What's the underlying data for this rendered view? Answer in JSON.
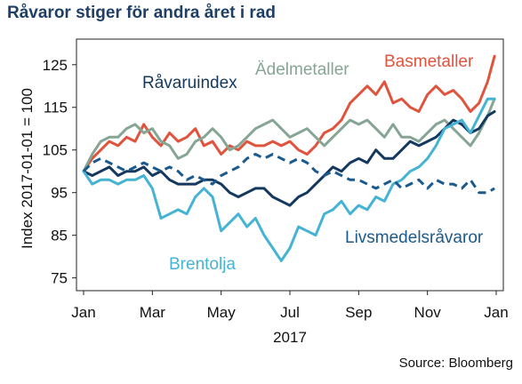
{
  "chart_data": {
    "type": "line",
    "title": "Råvaror stiger för andra året i rad",
    "xlabel": "2017",
    "ylabel": "Index 2017-01-01 = 100",
    "source": "Source: Bloomberg",
    "ylim": [
      72,
      131
    ],
    "yticks": [
      75,
      85,
      95,
      105,
      115,
      125
    ],
    "xlim": [
      0,
      12
    ],
    "xticks": [
      {
        "x": 0,
        "label": "Jan"
      },
      {
        "x": 2,
        "label": "Mar"
      },
      {
        "x": 4,
        "label": "May"
      },
      {
        "x": 6,
        "label": "Jul"
      },
      {
        "x": 8,
        "label": "Sep"
      },
      {
        "x": 10,
        "label": "Nov"
      },
      {
        "x": 12,
        "label": "Jan"
      }
    ],
    "grid": false,
    "legend": "inline labels",
    "series": [
      {
        "name": "Basmetaller",
        "color": "#e0533d",
        "dashed": false,
        "x": [
          0,
          0.25,
          0.5,
          0.75,
          1,
          1.25,
          1.5,
          1.75,
          2,
          2.25,
          2.5,
          2.75,
          3,
          3.25,
          3.5,
          3.75,
          4,
          4.25,
          4.5,
          4.75,
          5,
          5.25,
          5.5,
          5.75,
          6,
          6.25,
          6.5,
          6.75,
          7,
          7.25,
          7.5,
          7.75,
          8,
          8.25,
          8.5,
          8.75,
          9,
          9.25,
          9.5,
          9.75,
          10,
          10.25,
          10.5,
          10.75,
          11,
          11.25,
          11.5,
          11.75,
          11.95
        ],
        "y": [
          100,
          103,
          105,
          107,
          106,
          108,
          107,
          111,
          108,
          106,
          109,
          107,
          108,
          110,
          106,
          107,
          104,
          106,
          105,
          107,
          106,
          106,
          107,
          106,
          107,
          105,
          104,
          106,
          109,
          110,
          112,
          116,
          118,
          120,
          118,
          121,
          116,
          117,
          115,
          114,
          118,
          120,
          118,
          119,
          117,
          114,
          116,
          121,
          127
        ]
      },
      {
        "name": "Ädelmetaller",
        "color": "#86a595",
        "dashed": false,
        "x": [
          0,
          0.25,
          0.5,
          0.75,
          1,
          1.25,
          1.5,
          1.75,
          2,
          2.25,
          2.5,
          2.75,
          3,
          3.25,
          3.5,
          3.75,
          4,
          4.25,
          4.5,
          4.75,
          5,
          5.25,
          5.5,
          5.75,
          6,
          6.25,
          6.5,
          6.75,
          7,
          7.25,
          7.5,
          7.75,
          8,
          8.25,
          8.5,
          8.75,
          9,
          9.25,
          9.5,
          9.75,
          10,
          10.25,
          10.5,
          10.75,
          11,
          11.25,
          11.5,
          11.75,
          11.95
        ],
        "y": [
          100,
          104,
          107,
          108,
          108,
          110,
          111,
          109,
          110,
          107,
          106,
          103,
          104,
          107,
          108,
          110,
          108,
          105,
          106,
          108,
          110,
          111,
          112,
          110,
          108,
          109,
          110,
          108,
          106,
          108,
          110,
          112,
          111,
          112,
          110,
          108,
          111,
          108,
          108,
          107,
          109,
          111,
          112,
          110,
          108,
          106,
          109,
          113,
          117
        ]
      },
      {
        "name": "Råvaruindex",
        "color": "#15385f",
        "dashed": false,
        "x": [
          0,
          0.25,
          0.5,
          0.75,
          1,
          1.25,
          1.5,
          1.75,
          2,
          2.25,
          2.5,
          2.75,
          3,
          3.25,
          3.5,
          3.75,
          4,
          4.25,
          4.5,
          4.75,
          5,
          5.25,
          5.5,
          5.75,
          6,
          6.25,
          6.5,
          6.75,
          7,
          7.25,
          7.5,
          7.75,
          8,
          8.25,
          8.5,
          8.75,
          9,
          9.25,
          9.5,
          9.75,
          10,
          10.25,
          10.5,
          10.75,
          11,
          11.25,
          11.5,
          11.75,
          11.95
        ],
        "y": [
          100,
          99,
          100,
          101,
          99,
          100,
          100,
          101,
          99,
          100,
          98,
          97,
          97,
          97,
          98,
          98,
          97,
          95,
          94,
          95,
          96,
          96,
          94,
          93,
          92,
          94,
          95,
          97,
          99,
          101,
          100,
          102,
          103,
          102,
          105,
          103,
          103,
          105,
          107,
          106,
          107,
          108,
          110,
          112,
          111,
          109,
          110,
          113,
          114
        ]
      },
      {
        "name": "Brentolja",
        "color": "#45b3d4",
        "dashed": false,
        "x": [
          0,
          0.25,
          0.5,
          0.75,
          1,
          1.25,
          1.5,
          1.75,
          2,
          2.25,
          2.5,
          2.75,
          3,
          3.25,
          3.5,
          3.75,
          4,
          4.25,
          4.5,
          4.75,
          5,
          5.25,
          5.5,
          5.75,
          6,
          6.25,
          6.5,
          6.75,
          7,
          7.25,
          7.5,
          7.75,
          8,
          8.25,
          8.5,
          8.75,
          9,
          9.25,
          9.5,
          9.75,
          10,
          10.25,
          10.5,
          10.75,
          11,
          11.25,
          11.5,
          11.75,
          11.95
        ],
        "y": [
          100,
          97,
          98,
          98,
          97,
          98,
          98,
          99,
          96,
          89,
          90,
          91,
          90,
          94,
          96,
          94,
          86,
          88,
          90,
          87,
          89,
          85,
          82,
          79,
          82,
          87,
          86,
          85,
          90,
          91,
          93,
          90,
          92,
          91,
          94,
          93,
          97,
          98,
          100,
          101,
          103,
          106,
          110,
          111,
          112,
          109,
          113,
          117,
          117
        ]
      },
      {
        "name": "Livsmedelsråvaror",
        "color": "#1a5a8c",
        "dashed": true,
        "x": [
          0,
          0.25,
          0.5,
          0.75,
          1,
          1.25,
          1.5,
          1.75,
          2,
          2.25,
          2.5,
          2.75,
          3,
          3.25,
          3.5,
          3.75,
          4,
          4.25,
          4.5,
          4.75,
          5,
          5.25,
          5.5,
          5.75,
          6,
          6.25,
          6.5,
          6.75,
          7,
          7.25,
          7.5,
          7.75,
          8,
          8.25,
          8.5,
          8.75,
          9,
          9.25,
          9.5,
          9.75,
          10,
          10.25,
          10.5,
          10.75,
          11,
          11.25,
          11.5,
          11.75,
          11.95
        ],
        "y": [
          100,
          102,
          103,
          102,
          101,
          100,
          101,
          102,
          101,
          100,
          101,
          100,
          98,
          99,
          98,
          97,
          99,
          100,
          101,
          103,
          104,
          103,
          104,
          103,
          102,
          103,
          102,
          100,
          99,
          100,
          99,
          98,
          98,
          97,
          96,
          97,
          98,
          96,
          97,
          98,
          96,
          98,
          97,
          97,
          96,
          98,
          95,
          95,
          96
        ]
      }
    ],
    "annotations": [
      {
        "text": "Basmetaller",
        "series": "Basmetaller"
      },
      {
        "text": "Ädelmetaller",
        "series": "Ädelmetaller"
      },
      {
        "text": "Råvaruindex",
        "series": "Råvaruindex"
      },
      {
        "text": "Brentolja",
        "series": "Brentolja"
      },
      {
        "text": "Livsmedelsråvaror",
        "series": "Livsmedelsråvaror"
      }
    ]
  }
}
